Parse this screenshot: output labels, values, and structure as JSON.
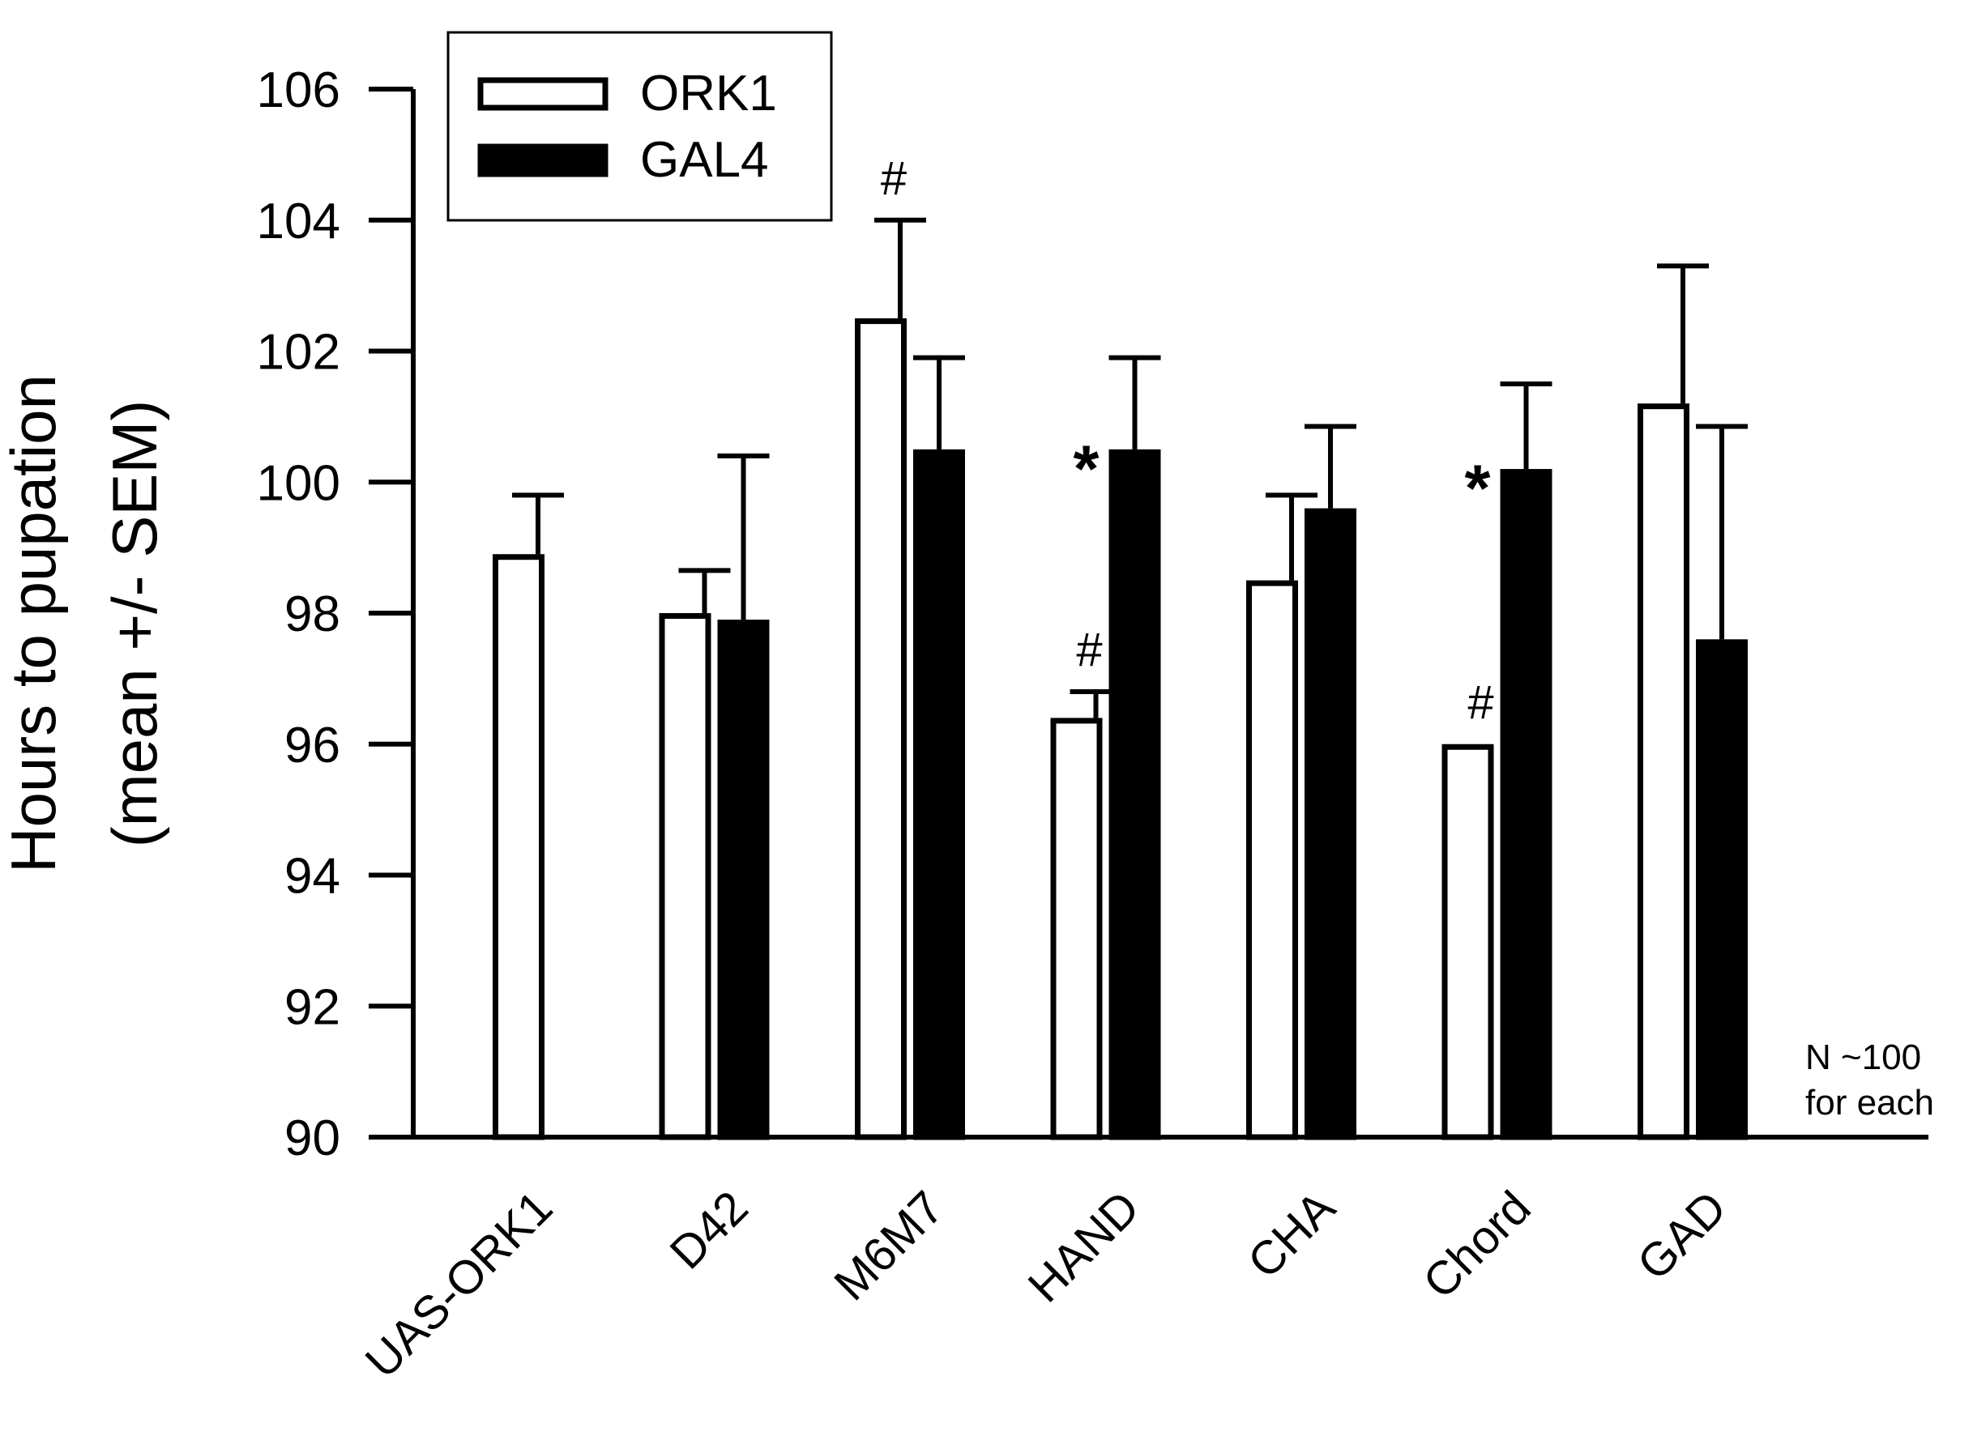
{
  "chart_data": {
    "type": "bar",
    "title": "",
    "xlabel": "",
    "ylabel_lines": [
      "Hours to pupation",
      "(mean +/- SEM)"
    ],
    "ylim": [
      90,
      106
    ],
    "yticks": [
      90,
      92,
      94,
      96,
      98,
      100,
      102,
      104,
      106
    ],
    "categories": [
      "UAS-ORK1",
      "D42",
      "M6M7",
      "HAND",
      "CHA",
      "Chord",
      "GAD"
    ],
    "legend_position": "top-left",
    "series": [
      {
        "name": "ORK1",
        "fill": "#ffffff",
        "values": [
          98.9,
          98.0,
          102.5,
          96.4,
          98.5,
          96.0,
          101.2
        ],
        "errors": [
          0.9,
          0.65,
          1.5,
          0.4,
          1.3,
          0.0,
          2.1
        ],
        "annotations": [
          "",
          "",
          "#",
          "#",
          "",
          "#",
          ""
        ]
      },
      {
        "name": "GAL4",
        "fill": "#000000",
        "values": [
          null,
          97.9,
          100.5,
          100.5,
          99.6,
          100.2,
          97.6
        ],
        "errors": [
          null,
          2.5,
          1.4,
          1.4,
          1.25,
          1.3,
          3.25
        ],
        "annotations": [
          "",
          "",
          "",
          "*",
          "",
          "*",
          ""
        ]
      }
    ],
    "note_lines": [
      "N ~100",
      "for each"
    ]
  }
}
